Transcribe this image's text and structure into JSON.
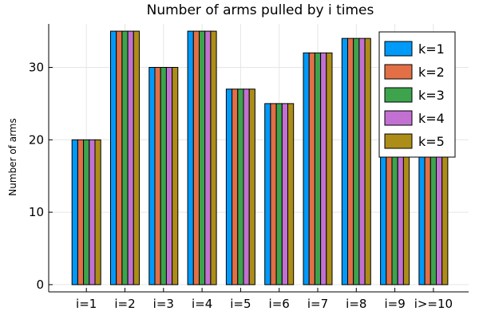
{
  "chart_data": {
    "type": "bar",
    "title": "Number of arms pulled by i times",
    "xlabel": "",
    "ylabel": "Number of arms",
    "ylim": [
      -1,
      36
    ],
    "yticks": [
      0,
      10,
      20,
      30
    ],
    "grid": true,
    "legend_position": "top-right",
    "categories": [
      "i=1",
      "i=2",
      "i=3",
      "i=4",
      "i=5",
      "i=6",
      "i=7",
      "i=8",
      "i=9",
      "i>=10"
    ],
    "series": [
      {
        "name": "k=1",
        "color": "#009af9",
        "values": [
          20,
          35,
          30,
          35,
          27,
          25,
          32,
          34,
          20,
          19
        ]
      },
      {
        "name": "k=2",
        "color": "#e26f46",
        "values": [
          20,
          35,
          30,
          35,
          27,
          25,
          32,
          34,
          20,
          19
        ]
      },
      {
        "name": "k=3",
        "color": "#3da44d",
        "values": [
          20,
          35,
          30,
          35,
          27,
          25,
          32,
          34,
          20,
          19
        ]
      },
      {
        "name": "k=4",
        "color": "#c271d2",
        "values": [
          20,
          35,
          30,
          35,
          27,
          25,
          32,
          34,
          20,
          19
        ]
      },
      {
        "name": "k=5",
        "color": "#ac8d18",
        "values": [
          20,
          35,
          30,
          35,
          27,
          25,
          32,
          34,
          20,
          19
        ]
      }
    ]
  }
}
